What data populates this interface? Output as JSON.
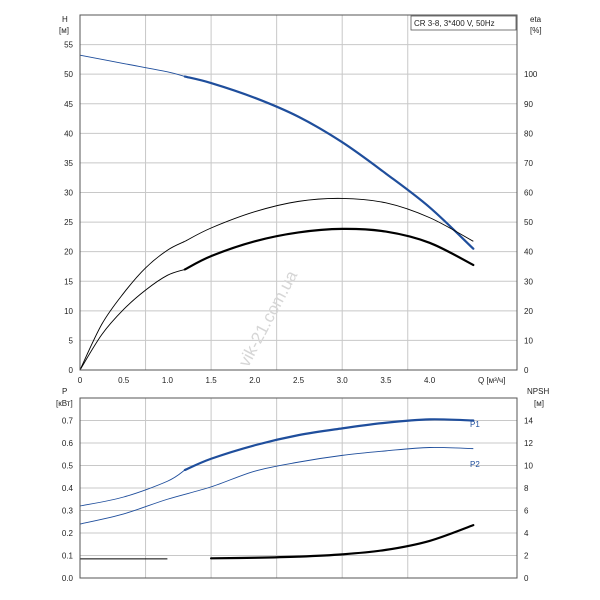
{
  "title_box": "CR 3-8, 3*400 V, 50Hz",
  "watermark": "vik-21.com.ua",
  "colors": {
    "blue": "#1f4e9c",
    "black": "#000000",
    "grid": "#c8c8c8"
  },
  "chart_data": [
    {
      "type": "line",
      "name": "top",
      "left_axis": {
        "label": "H",
        "unit": "[м]",
        "range": [
          0,
          60
        ],
        "ticks": [
          0,
          5,
          10,
          15,
          20,
          25,
          30,
          35,
          40,
          45,
          50,
          55
        ]
      },
      "right_axis": {
        "label": "eta",
        "unit": "[%]",
        "range": [
          0,
          120
        ],
        "ticks": [
          0,
          10,
          20,
          30,
          40,
          50,
          60,
          70,
          80,
          90,
          100
        ]
      },
      "x_axis": {
        "label": "Q [м³/ч]",
        "range": [
          0,
          5
        ],
        "ticks": [
          "0",
          "0.5",
          "1.0",
          "1.5",
          "2.0",
          "2.5",
          "3.0",
          "3.5",
          "4.0"
        ],
        "tick_values": [
          0,
          0.5,
          1.0,
          1.5,
          2.0,
          2.5,
          3.0,
          3.5,
          4.0
        ]
      },
      "series": [
        {
          "axis": "left",
          "color": "#1f4e9c",
          "thin_until": 1.2,
          "width": 2.2,
          "x": [
            0,
            0.5,
            1.0,
            1.2,
            1.5,
            2.0,
            2.5,
            3.0,
            3.5,
            4.0,
            4.5
          ],
          "y": [
            53.2,
            51.8,
            50.4,
            49.6,
            48.5,
            46.0,
            42.8,
            38.5,
            33.2,
            27.5,
            20.5
          ]
        },
        {
          "axis": "right",
          "color": "#000000",
          "thin_until": 1.2,
          "width": 1,
          "x": [
            0,
            0.25,
            0.5,
            0.75,
            1.0,
            1.2,
            1.5,
            2.0,
            2.5,
            3.0,
            3.5,
            4.0,
            4.5
          ],
          "y": [
            0,
            15.5,
            26,
            34.5,
            40.5,
            43.5,
            48,
            53.5,
            57,
            58,
            56.5,
            51.5,
            43.5
          ]
        },
        {
          "axis": "right",
          "color": "#000000",
          "thin_until": 1.2,
          "width": 2.2,
          "x": [
            0,
            0.25,
            0.5,
            0.75,
            1.0,
            1.2,
            1.5,
            2.0,
            2.5,
            3.0,
            3.5,
            4.0,
            4.5
          ],
          "y": [
            0,
            12,
            20.5,
            27,
            32,
            34,
            38.5,
            43.5,
            46.5,
            47.7,
            46.8,
            43,
            35.5
          ]
        }
      ]
    },
    {
      "type": "line",
      "name": "bottom",
      "left_axis": {
        "label": "P",
        "unit": "[кВт]",
        "range": [
          0,
          0.8
        ],
        "ticks": [
          "0.0",
          "0.1",
          "0.2",
          "0.3",
          "0.4",
          "0.5",
          "0.6",
          "0.7"
        ],
        "tick_values": [
          0,
          0.1,
          0.2,
          0.3,
          0.4,
          0.5,
          0.6,
          0.7
        ]
      },
      "right_axis": {
        "label": "NPSH",
        "unit": "[м]",
        "range": [
          0,
          16
        ],
        "ticks": [
          0,
          2,
          4,
          6,
          8,
          10,
          12,
          14
        ]
      },
      "x_axis": {
        "range": [
          0,
          5
        ]
      },
      "series": [
        {
          "name": "P1",
          "axis": "left",
          "color": "#1f4e9c",
          "thin_until": 1.2,
          "width": 2.2,
          "x": [
            0,
            0.5,
            1.0,
            1.2,
            1.5,
            2.0,
            2.5,
            3.0,
            3.5,
            4.0,
            4.5
          ],
          "y": [
            0.32,
            0.36,
            0.43,
            0.48,
            0.53,
            0.59,
            0.635,
            0.665,
            0.69,
            0.705,
            0.7
          ]
        },
        {
          "name": "P2",
          "axis": "left",
          "color": "#1f4e9c",
          "thin_until": 4.6,
          "width": 1,
          "x": [
            0,
            0.5,
            1.0,
            1.5,
            2.0,
            2.5,
            3.0,
            3.5,
            4.0,
            4.5
          ],
          "y": [
            0.24,
            0.285,
            0.35,
            0.405,
            0.475,
            0.515,
            0.545,
            0.565,
            0.58,
            0.575
          ]
        },
        {
          "axis": "right",
          "color": "#000000",
          "thin_until": 1.2,
          "width": 2.2,
          "x": [
            0,
            0.5,
            1.0,
            1.5,
            2.0,
            2.5,
            3.0,
            3.5,
            4.0,
            4.5
          ],
          "y": [
            1.7,
            1.7,
            1.7,
            1.75,
            1.8,
            1.9,
            2.1,
            2.5,
            3.3,
            4.7
          ]
        }
      ]
    }
  ]
}
